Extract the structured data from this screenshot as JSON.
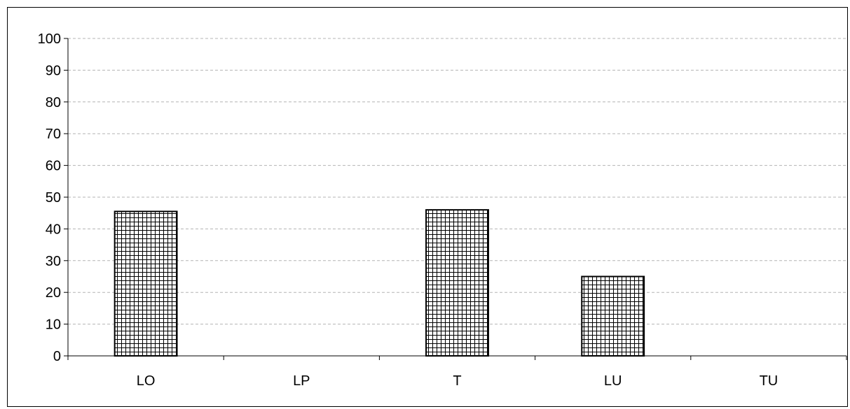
{
  "chart_data": {
    "type": "bar",
    "categories": [
      "LO",
      "LP",
      "T",
      "LU",
      "TU"
    ],
    "values": [
      45.5,
      0,
      46,
      25,
      0
    ],
    "ylim": [
      0,
      100
    ],
    "yticks": [
      0,
      10,
      20,
      30,
      40,
      50,
      60,
      70,
      80,
      90,
      100
    ],
    "grid": true,
    "bar_fill": "crosshatch",
    "colors": {
      "bar_stroke": "#000000",
      "grid": "#b4b4b4",
      "axis": "#000000"
    }
  }
}
